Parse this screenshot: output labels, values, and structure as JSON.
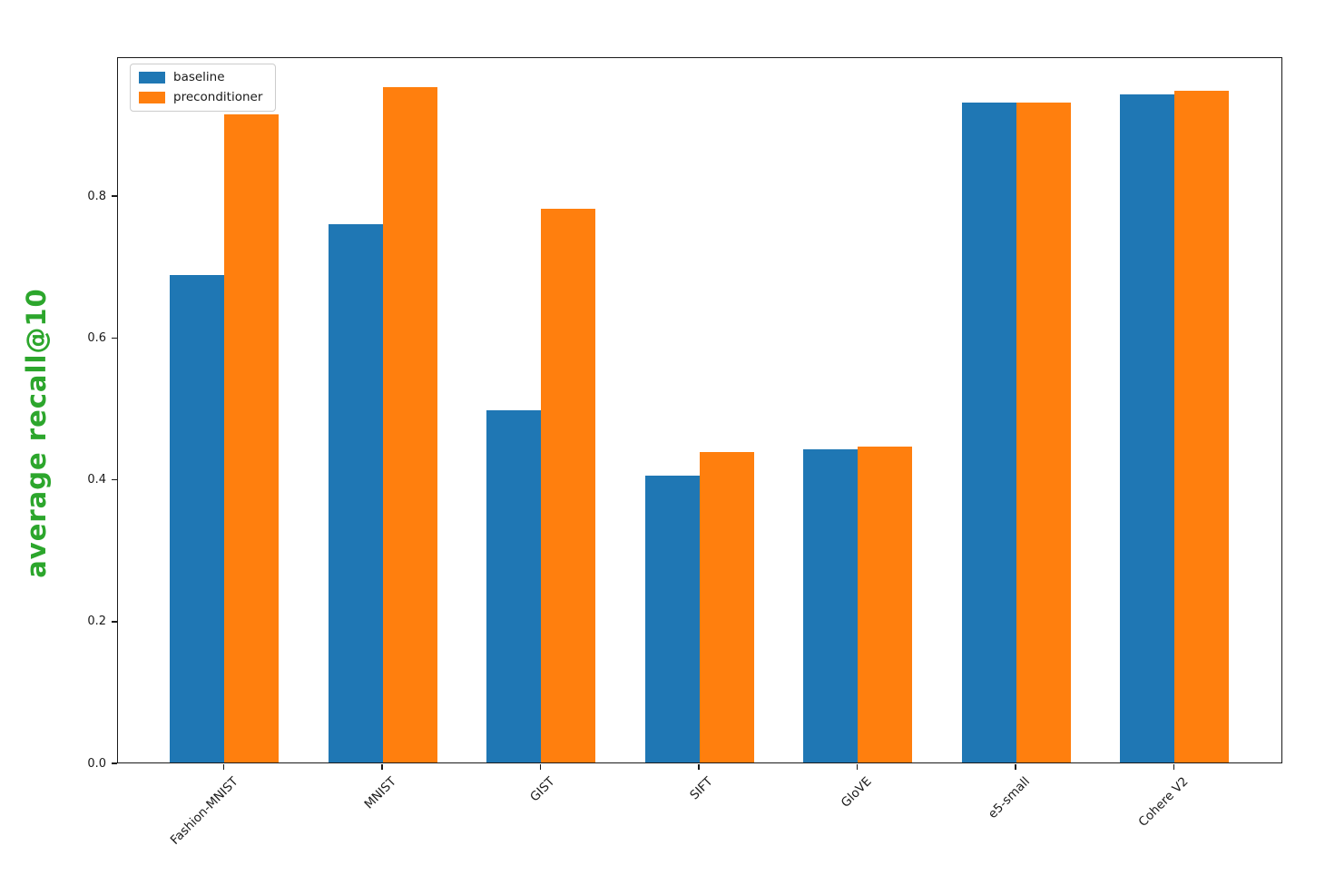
{
  "chart_data": {
    "type": "bar",
    "title": "",
    "xlabel": "",
    "ylabel": "average recall@10",
    "ylabel_color": "#2ca62c",
    "categories": [
      "Fashion-MNIST",
      "MNIST",
      "GIST",
      "SIFT",
      "GloVE",
      "e5-small",
      "Cohere V2"
    ],
    "series": [
      {
        "name": "baseline",
        "color": "#1f77b4",
        "values": [
          0.687,
          0.759,
          0.497,
          0.405,
          0.442,
          0.931,
          0.942
        ]
      },
      {
        "name": "preconditioner",
        "color": "#ff7f0e",
        "values": [
          0.914,
          0.952,
          0.781,
          0.438,
          0.446,
          0.931,
          0.947
        ]
      }
    ],
    "yticks": [
      0.0,
      0.2,
      0.4,
      0.6,
      0.8
    ],
    "ytick_labels": [
      "0.0",
      "0.2",
      "0.4",
      "0.6",
      "0.8"
    ],
    "ylim": [
      0,
      0.996
    ],
    "grid": false,
    "legend_position": "upper left",
    "axis_color": "#1a1a1a"
  }
}
